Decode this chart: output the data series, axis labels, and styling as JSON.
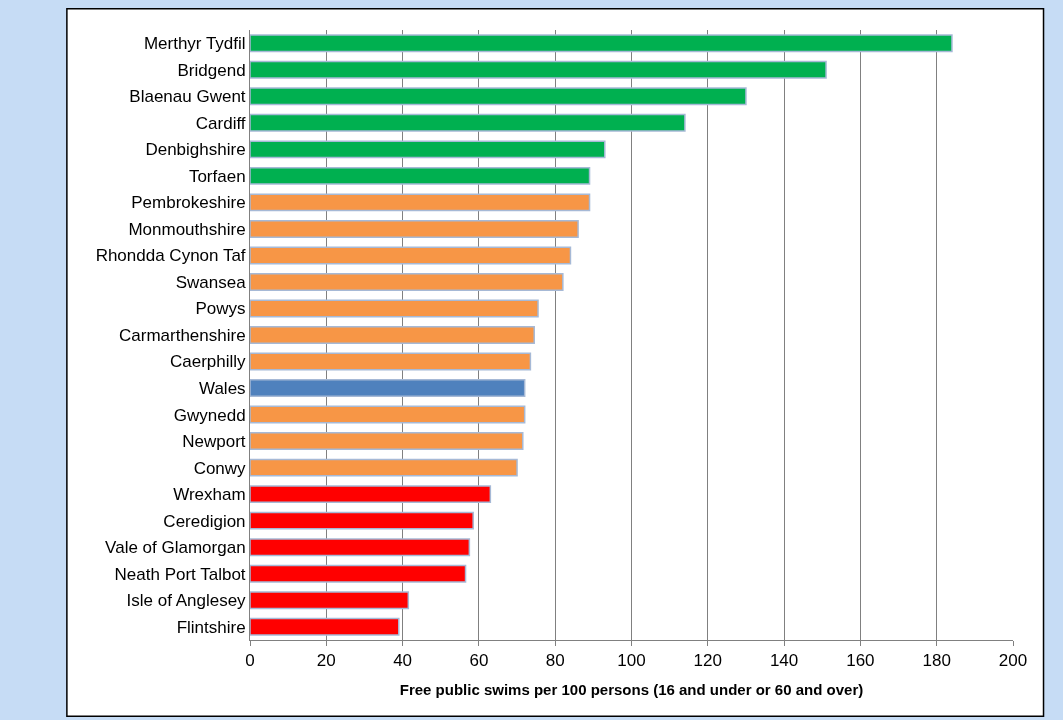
{
  "chart_data": {
    "type": "bar",
    "orientation": "horizontal",
    "xlabel": "Free public swims per 100 persons (16 and under or 60 and over)",
    "categories": [
      "Merthyr Tydfil",
      "Bridgend",
      "Blaenau Gwent",
      "Cardiff",
      "Denbighshire",
      "Torfaen",
      "Pembrokeshire",
      "Monmouthshire",
      "Rhondda Cynon Taf",
      "Swansea",
      "Powys",
      "Carmarthenshire",
      "Caerphilly",
      "Wales",
      "Gwynedd",
      "Newport",
      "Conwy",
      "Wrexham",
      "Ceredigion",
      "Vale of Glamorgan",
      "Neath Port Talbot",
      "Isle of Anglesey",
      "Flintshire"
    ],
    "values": [
      184,
      151,
      130,
      114,
      93,
      89,
      89,
      86,
      84,
      82,
      75.5,
      74.5,
      73.5,
      72,
      72,
      71.5,
      70,
      63,
      58.5,
      57.5,
      56.5,
      41.5,
      39
    ],
    "colors": [
      "#00b050",
      "#00b050",
      "#00b050",
      "#00b050",
      "#00b050",
      "#00b050",
      "#f79646",
      "#f79646",
      "#f79646",
      "#f79646",
      "#f79646",
      "#f79646",
      "#f79646",
      "#4f81bd",
      "#f79646",
      "#f79646",
      "#f79646",
      "#ff0000",
      "#ff0000",
      "#ff0000",
      "#ff0000",
      "#ff0000",
      "#ff0000"
    ],
    "xlim": [
      0,
      200
    ],
    "xticks": [
      0,
      20,
      40,
      60,
      80,
      100,
      120,
      140,
      160,
      180,
      200
    ],
    "grid": "x"
  }
}
